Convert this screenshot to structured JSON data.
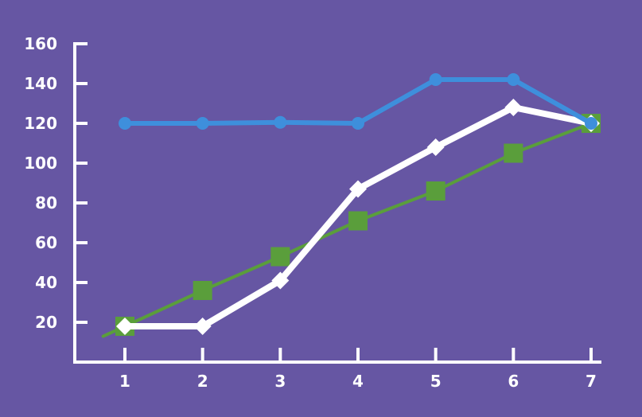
{
  "colors": {
    "background": "#6656a3",
    "axis": "#ffffff",
    "blue_series": "#3e8fdc",
    "white_series": "#ffffff",
    "green_series": "#5a9e3b"
  },
  "chart_data": {
    "type": "line",
    "title": "",
    "xlabel": "",
    "ylabel": "",
    "x": [
      1,
      2,
      3,
      4,
      5,
      6,
      7
    ],
    "x_ticks": [
      "1",
      "2",
      "3",
      "4",
      "5",
      "6",
      "7"
    ],
    "y_ticks": [
      "20",
      "40",
      "60",
      "80",
      "100",
      "120",
      "140",
      "160"
    ],
    "ylim": [
      0,
      160
    ],
    "xlim": [
      0.4,
      7
    ],
    "grid": false,
    "series": [
      {
        "marker": "circle",
        "color": "#3e8fdc",
        "values": [
          120,
          120,
          120.5,
          120,
          142,
          142,
          120
        ]
      },
      {
        "marker": "diamond",
        "color": "#ffffff",
        "values": [
          18,
          18,
          41,
          87,
          108,
          128,
          120
        ]
      },
      {
        "marker": "square",
        "color": "#5a9e3b",
        "values": [
          18,
          36,
          53,
          71,
          86,
          105,
          120
        ],
        "line_extends_below_first_point": true
      }
    ]
  }
}
